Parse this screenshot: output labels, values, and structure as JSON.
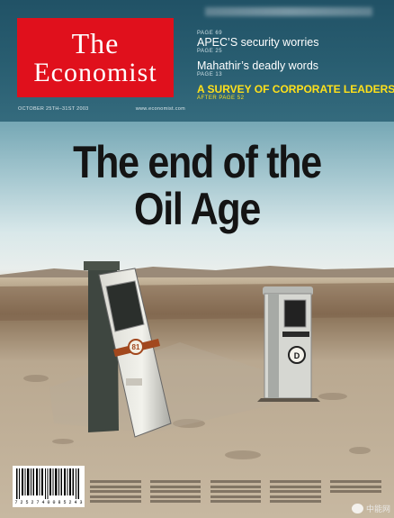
{
  "masthead": {
    "line1": "The",
    "line2": "Economist"
  },
  "dateline": {
    "date": "OCTOBER 25TH–31ST 2003",
    "website": "www.economist.com"
  },
  "contents": [
    {
      "page_before": "PAGE 69",
      "title": "APEC’S security worries",
      "page_after": "PAGE 25"
    },
    {
      "page_before": "",
      "title": "Mahathir’s deadly words",
      "page_after": "PAGE 13"
    },
    {
      "page_before": "",
      "title": "A SURVEY OF CORPORATE LEADERSHIP",
      "page_after": "AFTER PAGE 52"
    }
  ],
  "headline": {
    "line1": "The end of the",
    "line2": "Oil Age"
  },
  "pump_left_number": "81",
  "barcode_digits": "7 2 5 2 7 4 0 0 8 5 2 4 3",
  "watermark": {
    "text": "中能网"
  },
  "colors": {
    "masthead_red": "#e0101c",
    "survey_yellow": "#ffe11a",
    "header_blue": "#2d6477"
  }
}
